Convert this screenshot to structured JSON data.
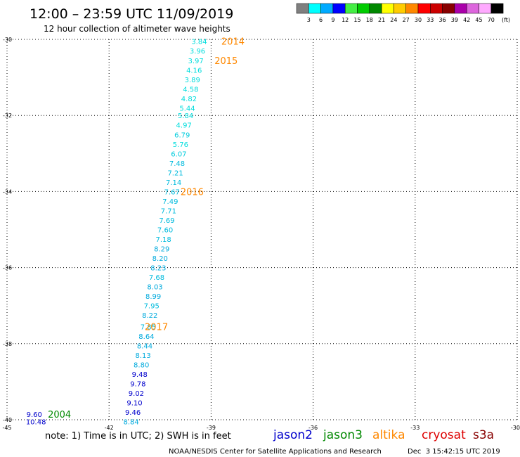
{
  "header": {
    "title": "12:00 – 23:59 UTC 11/09/2019",
    "subtitle": "12 hour collection of altimeter wave heights"
  },
  "color_scale": {
    "labels": [
      "3",
      "6",
      "9",
      "12",
      "15",
      "18",
      "21",
      "24",
      "27",
      "30",
      "33",
      "36",
      "39",
      "42",
      "45",
      "70"
    ],
    "unit": "(ft)",
    "colors": [
      "#7f7f7f",
      "#00ffff",
      "#00aaff",
      "#0000ff",
      "#44ee44",
      "#00cc00",
      "#008800",
      "#ffff00",
      "#ffcc00",
      "#ff8800",
      "#ff0000",
      "#cc0000",
      "#880000",
      "#aa00aa",
      "#dd66dd",
      "#ffaaff",
      "#000000"
    ]
  },
  "footer": {
    "note": "note: 1) Time is in UTC; 2) SWH is in feet",
    "credit": "NOAA/NESDIS Center for Satellite Applications and Research",
    "timestamp": "Dec  3 15:42:15 UTC 2019"
  },
  "legend": [
    {
      "name": "jason2",
      "color": "#0000cc"
    },
    {
      "name": "jason3",
      "color": "#008800"
    },
    {
      "name": "altika",
      "color": "#ff8800"
    },
    {
      "name": "cryosat",
      "color": "#dd0000"
    },
    {
      "name": "s3a",
      "color": "#880000"
    }
  ],
  "chart_data": {
    "type": "scatter",
    "title": "12:00 – 23:59 UTC 11/09/2019",
    "xlim": [
      -45,
      -30
    ],
    "ylim": [
      -40,
      -30
    ],
    "x_ticks": [
      "-45",
      "-42",
      "-39",
      "-36",
      "-33",
      "-30"
    ],
    "x_tick_values": [
      -45,
      -42,
      -39,
      -36,
      -33,
      -30
    ],
    "y_ticks": [
      "-30",
      "-32",
      "-34",
      "-36",
      "-38",
      "-40"
    ],
    "y_tick_values": [
      -30,
      -32,
      -34,
      -36,
      -38,
      -40
    ],
    "grid": true,
    "points": [
      {
        "x": -39.35,
        "y": -30.05,
        "label": "3.84",
        "color": "#00dddd"
      },
      {
        "x": -39.4,
        "y": -30.3,
        "label": "3.96",
        "color": "#00dddd"
      },
      {
        "x": -39.45,
        "y": -30.55,
        "label": "3.97",
        "color": "#00dddd"
      },
      {
        "x": -39.5,
        "y": -30.8,
        "label": "4.16",
        "color": "#00dddd"
      },
      {
        "x": -39.55,
        "y": -31.05,
        "label": "3.89",
        "color": "#00dddd"
      },
      {
        "x": -39.6,
        "y": -31.3,
        "label": "4.58",
        "color": "#00dddd"
      },
      {
        "x": -39.65,
        "y": -31.55,
        "label": "4.82",
        "color": "#00dddd"
      },
      {
        "x": -39.7,
        "y": -31.8,
        "label": "5.44",
        "color": "#00dddd"
      },
      {
        "x": -39.75,
        "y": -32.0,
        "label": "5.84",
        "color": "#00dddd"
      },
      {
        "x": -39.8,
        "y": -32.25,
        "label": "4.97",
        "color": "#00dddd"
      },
      {
        "x": -39.85,
        "y": -32.5,
        "label": "6.79",
        "color": "#00ccdd"
      },
      {
        "x": -39.9,
        "y": -32.75,
        "label": "5.76",
        "color": "#00dddd"
      },
      {
        "x": -39.95,
        "y": -33.0,
        "label": "6.07",
        "color": "#00ccdd"
      },
      {
        "x": -40.0,
        "y": -33.25,
        "label": "7.48",
        "color": "#00bbdd"
      },
      {
        "x": -40.05,
        "y": -33.5,
        "label": "7.21",
        "color": "#00bbdd"
      },
      {
        "x": -40.1,
        "y": -33.75,
        "label": "7.14",
        "color": "#00bbdd"
      },
      {
        "x": -40.15,
        "y": -34.0,
        "label": "7.67",
        "color": "#00bbdd"
      },
      {
        "x": -40.2,
        "y": -34.25,
        "label": "7.49",
        "color": "#00bbdd"
      },
      {
        "x": -40.25,
        "y": -34.5,
        "label": "7.71",
        "color": "#00bbdd"
      },
      {
        "x": -40.3,
        "y": -34.75,
        "label": "7.69",
        "color": "#00bbdd"
      },
      {
        "x": -40.35,
        "y": -35.0,
        "label": "7.60",
        "color": "#00bbdd"
      },
      {
        "x": -40.4,
        "y": -35.25,
        "label": "7.18",
        "color": "#00bbdd"
      },
      {
        "x": -40.45,
        "y": -35.5,
        "label": "8.29",
        "color": "#00aadd"
      },
      {
        "x": -40.5,
        "y": -35.75,
        "label": "8.20",
        "color": "#00aadd"
      },
      {
        "x": -40.55,
        "y": -36.0,
        "label": "8.23",
        "color": "#00aadd"
      },
      {
        "x": -40.6,
        "y": -36.25,
        "label": "7.68",
        "color": "#00bbdd"
      },
      {
        "x": -40.65,
        "y": -36.5,
        "label": "8.03",
        "color": "#00aadd"
      },
      {
        "x": -40.7,
        "y": -36.75,
        "label": "8.99",
        "color": "#00aadd"
      },
      {
        "x": -40.75,
        "y": -37.0,
        "label": "7.95",
        "color": "#00bbdd"
      },
      {
        "x": -40.8,
        "y": -37.25,
        "label": "8.22",
        "color": "#00aadd"
      },
      {
        "x": -40.85,
        "y": -37.55,
        "label": "7.85",
        "color": "#00bbdd"
      },
      {
        "x": -40.9,
        "y": -37.8,
        "label": "8.64",
        "color": "#00aadd"
      },
      {
        "x": -40.95,
        "y": -38.05,
        "label": "8.44",
        "color": "#00aadd"
      },
      {
        "x": -41.0,
        "y": -38.3,
        "label": "8.13",
        "color": "#00aadd"
      },
      {
        "x": -41.05,
        "y": -38.55,
        "label": "8.80",
        "color": "#00aadd"
      },
      {
        "x": -41.1,
        "y": -38.8,
        "label": "9.48",
        "color": "#0000cc"
      },
      {
        "x": -41.15,
        "y": -39.05,
        "label": "9.78",
        "color": "#0000cc"
      },
      {
        "x": -41.2,
        "y": -39.3,
        "label": "9.02",
        "color": "#0000cc"
      },
      {
        "x": -41.25,
        "y": -39.55,
        "label": "9.10",
        "color": "#0000cc"
      },
      {
        "x": -41.3,
        "y": -39.8,
        "label": "9.46",
        "color": "#0000cc"
      },
      {
        "x": -41.35,
        "y": -40.05,
        "label": "8.84",
        "color": "#00aadd"
      },
      {
        "x": -44.2,
        "y": -39.85,
        "label": "9.60",
        "color": "#0000cc"
      },
      {
        "x": -44.15,
        "y": -40.05,
        "label": "10.48",
        "color": "#0000cc"
      }
    ],
    "annotations": [
      {
        "x": -38.7,
        "y": -30.05,
        "text": "2014",
        "color": "#ff8800"
      },
      {
        "x": -38.9,
        "y": -30.55,
        "text": "2015",
        "color": "#ff8800"
      },
      {
        "x": -39.9,
        "y": -34.0,
        "text": "2016",
        "color": "#ff8800"
      },
      {
        "x": -40.95,
        "y": -37.55,
        "text": "2017",
        "color": "#ff8800"
      },
      {
        "x": -43.8,
        "y": -39.85,
        "text": "2004",
        "color": "#008800"
      }
    ]
  }
}
